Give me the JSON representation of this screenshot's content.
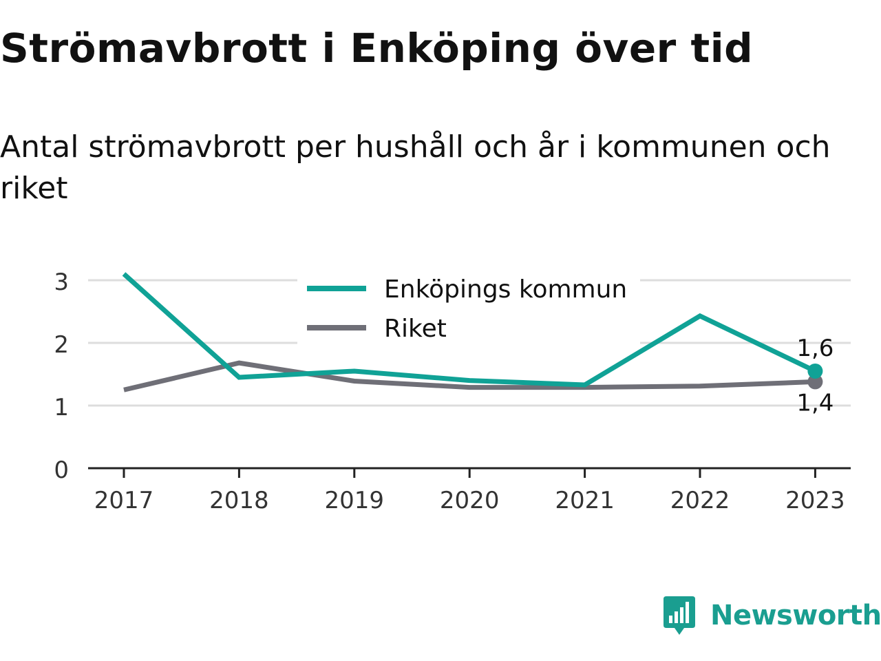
{
  "title": "Strömavbrott i Enköping över tid",
  "subtitle": "Antal strömavbrott per hushåll och år i kommunen och riket",
  "colors": {
    "kommun": "#10a296",
    "riket": "#6f6f77",
    "axis": "#222222",
    "grid": "#dddddd",
    "brand": "#1a9e90"
  },
  "chart_data": {
    "type": "line",
    "x": [
      "2017",
      "2018",
      "2019",
      "2020",
      "2021",
      "2022",
      "2023"
    ],
    "y_ticks": [
      "0",
      "1",
      "2",
      "3"
    ],
    "ylim": [
      0,
      3.2
    ],
    "grid": true,
    "legend_position": "top-center",
    "series": [
      {
        "name": "Enköpings kommun",
        "values": [
          3.1,
          1.45,
          1.55,
          1.4,
          1.33,
          2.43,
          1.55
        ],
        "end_label": "1,6",
        "color_key": "kommun"
      },
      {
        "name": "Riket",
        "values": [
          1.25,
          1.68,
          1.39,
          1.29,
          1.29,
          1.31,
          1.38
        ],
        "end_label": "1,4",
        "color_key": "riket"
      }
    ]
  },
  "logo": {
    "text": "Newsworthy",
    "icon": "newsworthy-logo-icon"
  }
}
